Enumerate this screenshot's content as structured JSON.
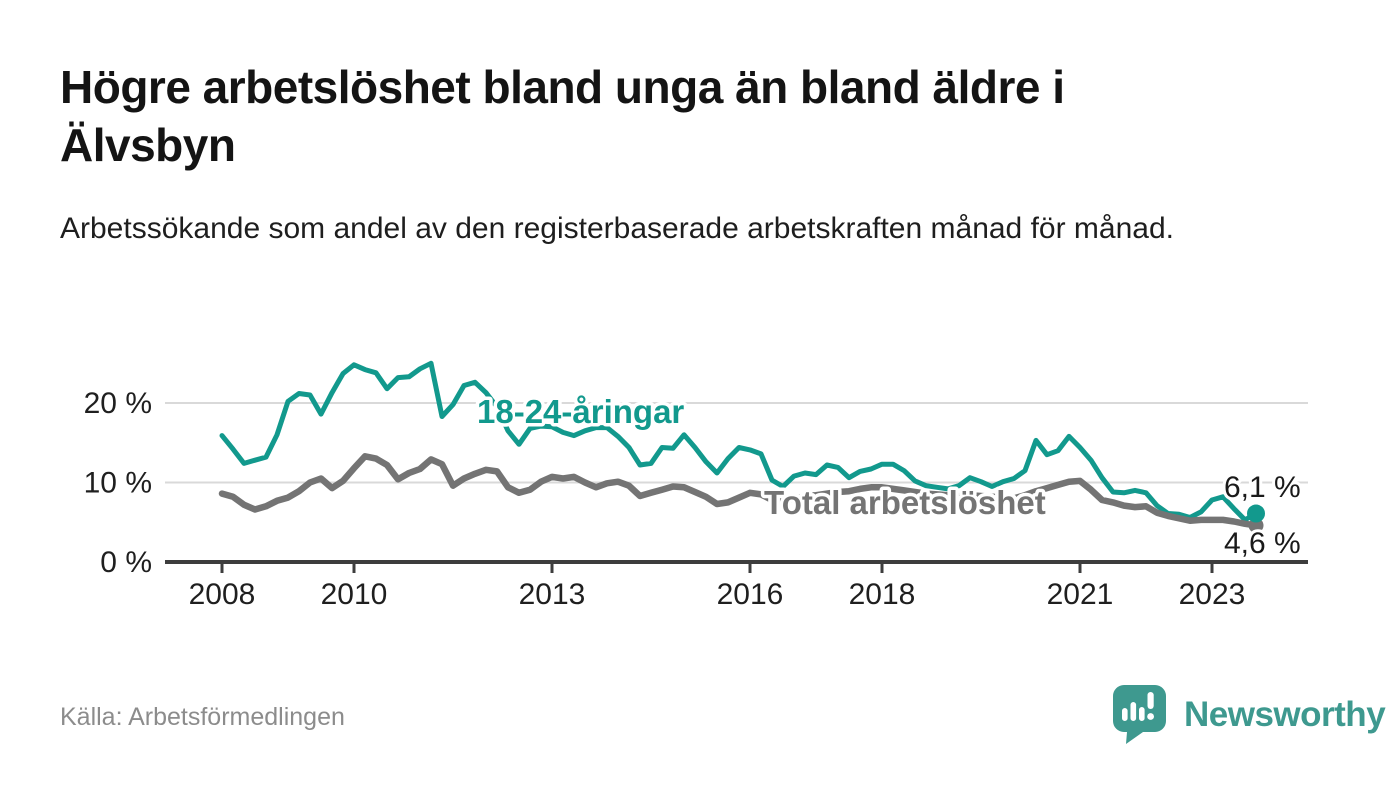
{
  "page": {
    "title": "Högre arbetslöshet bland unga än bland äldre i Älvsbyn",
    "subtitle": "Arbetssökande som andel av den registerbaserade arbetskraften månad för månad.",
    "source": "Källa: Arbetsförmedlingen",
    "brand": {
      "name": "Newsworthy",
      "color": "#3E998F",
      "icon": "newsworthy-speech-bubble-bar-chart-icon"
    }
  },
  "chart_data": {
    "type": "line",
    "unit": "%",
    "grid": "horizontal",
    "x0": 2008,
    "dx": 0.1666667,
    "xlim": [
      2007.1,
      2024.5
    ],
    "ylim": [
      0,
      27.7
    ],
    "x_ticks": [
      2008,
      2010,
      2013,
      2016,
      2018,
      2021,
      2023
    ],
    "x_tick_labels": [
      "2008",
      "2010",
      "2013",
      "2016",
      "2018",
      "2021",
      "2023"
    ],
    "y_ticks": [
      0,
      10,
      20
    ],
    "y_tick_labels": [
      "0 %",
      "10 %",
      "20 %"
    ],
    "series": [
      {
        "name": "18-24-åringar",
        "color": "#12998D",
        "end_label": "6,1 %",
        "end_value": 6.1,
        "values": [
          15.9,
          14.2,
          12.4,
          12.8,
          13.2,
          16.0,
          20.2,
          21.2,
          21.0,
          18.6,
          21.3,
          23.7,
          24.8,
          24.2,
          23.8,
          21.8,
          23.2,
          23.3,
          24.3,
          25.0,
          18.3,
          19.8,
          22.2,
          22.6,
          21.3,
          19.5,
          16.5,
          14.8,
          16.8,
          17.1,
          17.0,
          16.3,
          15.9,
          16.5,
          16.9,
          16.9,
          15.8,
          14.4,
          12.2,
          12.4,
          14.4,
          14.3,
          16.0,
          14.4,
          12.6,
          11.2,
          13.0,
          14.4,
          14.1,
          13.6,
          10.3,
          9.5,
          10.8,
          11.2,
          11.0,
          12.2,
          11.9,
          10.6,
          11.4,
          11.7,
          12.3,
          12.3,
          11.5,
          10.2,
          9.6,
          9.4,
          9.2,
          9.6,
          10.6,
          10.1,
          9.5,
          10.1,
          10.5,
          11.5,
          15.3,
          13.5,
          14.0,
          15.8,
          14.4,
          12.8,
          10.6,
          8.8,
          8.7,
          9.0,
          8.7,
          7.1,
          6.1,
          6.0,
          5.6,
          6.3,
          7.8,
          8.2,
          6.7,
          5.3,
          6.1
        ]
      },
      {
        "name": "Total arbetslöshet",
        "color": "#747474",
        "end_label": "4,6 %",
        "end_value": 4.6,
        "values": [
          8.6,
          8.2,
          7.2,
          6.6,
          7.0,
          7.7,
          8.1,
          8.9,
          10.0,
          10.5,
          9.3,
          10.2,
          11.8,
          13.3,
          13.0,
          12.2,
          10.4,
          11.2,
          11.7,
          12.9,
          12.3,
          9.6,
          10.5,
          11.1,
          11.6,
          11.4,
          9.4,
          8.7,
          9.1,
          10.1,
          10.7,
          10.5,
          10.7,
          10.0,
          9.4,
          9.9,
          10.1,
          9.6,
          8.3,
          8.7,
          9.1,
          9.5,
          9.4,
          8.8,
          8.2,
          7.3,
          7.5,
          8.1,
          8.7,
          8.5,
          7.8,
          7.6,
          7.9,
          8.3,
          8.4,
          8.6,
          8.8,
          8.9,
          9.2,
          9.4,
          9.4,
          9.2,
          9.0,
          8.8,
          8.6,
          8.5,
          8.4,
          8.3,
          8.4,
          8.3,
          8.2,
          8.1,
          8.0,
          8.4,
          8.9,
          9.3,
          9.7,
          10.1,
          10.2,
          9.1,
          7.8,
          7.5,
          7.1,
          6.9,
          7.0,
          6.2,
          5.8,
          5.5,
          5.2,
          5.3,
          5.3,
          5.3,
          5.1,
          4.8,
          4.6
        ]
      }
    ]
  }
}
